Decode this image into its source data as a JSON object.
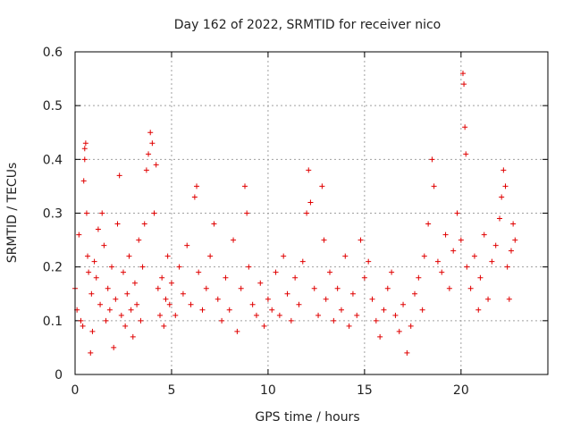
{
  "chart_data": {
    "type": "scatter",
    "title": "Day 162 of 2022, SRMTID for receiver nico",
    "xlabel": "GPS time / hours",
    "ylabel": "SRMTID / TECUs",
    "xlim": [
      0,
      24.5
    ],
    "ylim": [
      0,
      0.6
    ],
    "xticks": [
      0,
      5,
      10,
      15,
      20
    ],
    "xtick_labels": [
      "0",
      "5",
      "10",
      "15",
      "20"
    ],
    "yticks": [
      0,
      0.1,
      0.2,
      0.3,
      0.4,
      0.5,
      0.6
    ],
    "ytick_labels": [
      "0",
      "0.1",
      "0.2",
      "0.3",
      "0.4",
      "0.5",
      "0.6"
    ],
    "grid": true,
    "marker": "+",
    "color": "#e00000",
    "series": [
      {
        "name": "SRMTID",
        "points": [
          [
            0.0,
            0.16
          ],
          [
            0.1,
            0.12
          ],
          [
            0.2,
            0.26
          ],
          [
            0.3,
            0.1
          ],
          [
            0.4,
            0.09
          ],
          [
            0.45,
            0.36
          ],
          [
            0.5,
            0.42
          ],
          [
            0.5,
            0.4
          ],
          [
            0.55,
            0.43
          ],
          [
            0.6,
            0.3
          ],
          [
            0.65,
            0.22
          ],
          [
            0.7,
            0.19
          ],
          [
            0.8,
            0.04
          ],
          [
            0.85,
            0.15
          ],
          [
            0.9,
            0.08
          ],
          [
            1.0,
            0.21
          ],
          [
            1.1,
            0.18
          ],
          [
            1.2,
            0.27
          ],
          [
            1.3,
            0.13
          ],
          [
            1.4,
            0.3
          ],
          [
            1.5,
            0.24
          ],
          [
            1.6,
            0.1
          ],
          [
            1.7,
            0.16
          ],
          [
            1.8,
            0.12
          ],
          [
            1.9,
            0.2
          ],
          [
            2.0,
            0.05
          ],
          [
            2.1,
            0.14
          ],
          [
            2.2,
            0.28
          ],
          [
            2.3,
            0.37
          ],
          [
            2.4,
            0.11
          ],
          [
            2.5,
            0.19
          ],
          [
            2.6,
            0.09
          ],
          [
            2.7,
            0.15
          ],
          [
            2.8,
            0.22
          ],
          [
            2.9,
            0.12
          ],
          [
            3.0,
            0.07
          ],
          [
            3.1,
            0.17
          ],
          [
            3.2,
            0.13
          ],
          [
            3.3,
            0.25
          ],
          [
            3.4,
            0.1
          ],
          [
            3.5,
            0.2
          ],
          [
            3.6,
            0.28
          ],
          [
            3.7,
            0.38
          ],
          [
            3.8,
            0.41
          ],
          [
            3.9,
            0.45
          ],
          [
            4.0,
            0.43
          ],
          [
            4.1,
            0.3
          ],
          [
            4.2,
            0.39
          ],
          [
            4.3,
            0.16
          ],
          [
            4.4,
            0.11
          ],
          [
            4.5,
            0.18
          ],
          [
            4.6,
            0.09
          ],
          [
            4.7,
            0.14
          ],
          [
            4.8,
            0.22
          ],
          [
            4.9,
            0.13
          ],
          [
            5.0,
            0.17
          ],
          [
            5.2,
            0.11
          ],
          [
            5.4,
            0.2
          ],
          [
            5.6,
            0.15
          ],
          [
            5.8,
            0.24
          ],
          [
            6.0,
            0.13
          ],
          [
            6.2,
            0.33
          ],
          [
            6.3,
            0.35
          ],
          [
            6.4,
            0.19
          ],
          [
            6.6,
            0.12
          ],
          [
            6.8,
            0.16
          ],
          [
            7.0,
            0.22
          ],
          [
            7.2,
            0.28
          ],
          [
            7.4,
            0.14
          ],
          [
            7.6,
            0.1
          ],
          [
            7.8,
            0.18
          ],
          [
            8.0,
            0.12
          ],
          [
            8.2,
            0.25
          ],
          [
            8.4,
            0.08
          ],
          [
            8.6,
            0.16
          ],
          [
            8.8,
            0.35
          ],
          [
            8.9,
            0.3
          ],
          [
            9.0,
            0.2
          ],
          [
            9.2,
            0.13
          ],
          [
            9.4,
            0.11
          ],
          [
            9.6,
            0.17
          ],
          [
            9.8,
            0.09
          ],
          [
            10.0,
            0.14
          ],
          [
            10.2,
            0.12
          ],
          [
            10.4,
            0.19
          ],
          [
            10.6,
            0.11
          ],
          [
            10.8,
            0.22
          ],
          [
            11.0,
            0.15
          ],
          [
            11.2,
            0.1
          ],
          [
            11.4,
            0.18
          ],
          [
            11.6,
            0.13
          ],
          [
            11.8,
            0.21
          ],
          [
            12.0,
            0.3
          ],
          [
            12.1,
            0.38
          ],
          [
            12.2,
            0.32
          ],
          [
            12.4,
            0.16
          ],
          [
            12.6,
            0.11
          ],
          [
            12.8,
            0.35
          ],
          [
            12.9,
            0.25
          ],
          [
            13.0,
            0.14
          ],
          [
            13.2,
            0.19
          ],
          [
            13.4,
            0.1
          ],
          [
            13.6,
            0.16
          ],
          [
            13.8,
            0.12
          ],
          [
            14.0,
            0.22
          ],
          [
            14.2,
            0.09
          ],
          [
            14.4,
            0.15
          ],
          [
            14.6,
            0.11
          ],
          [
            14.8,
            0.25
          ],
          [
            15.0,
            0.18
          ],
          [
            15.2,
            0.21
          ],
          [
            15.4,
            0.14
          ],
          [
            15.6,
            0.1
          ],
          [
            15.8,
            0.07
          ],
          [
            16.0,
            0.12
          ],
          [
            16.2,
            0.16
          ],
          [
            16.4,
            0.19
          ],
          [
            16.6,
            0.11
          ],
          [
            16.8,
            0.08
          ],
          [
            17.0,
            0.13
          ],
          [
            17.2,
            0.04
          ],
          [
            17.4,
            0.09
          ],
          [
            17.6,
            0.15
          ],
          [
            17.8,
            0.18
          ],
          [
            18.0,
            0.12
          ],
          [
            18.1,
            0.22
          ],
          [
            18.3,
            0.28
          ],
          [
            18.5,
            0.4
          ],
          [
            18.6,
            0.35
          ],
          [
            18.8,
            0.21
          ],
          [
            19.0,
            0.19
          ],
          [
            19.2,
            0.26
          ],
          [
            19.4,
            0.16
          ],
          [
            19.6,
            0.23
          ],
          [
            19.8,
            0.3
          ],
          [
            20.0,
            0.25
          ],
          [
            20.1,
            0.56
          ],
          [
            20.15,
            0.54
          ],
          [
            20.2,
            0.46
          ],
          [
            20.25,
            0.41
          ],
          [
            20.3,
            0.2
          ],
          [
            20.5,
            0.16
          ],
          [
            20.7,
            0.22
          ],
          [
            20.9,
            0.12
          ],
          [
            21.0,
            0.18
          ],
          [
            21.2,
            0.26
          ],
          [
            21.4,
            0.14
          ],
          [
            21.6,
            0.21
          ],
          [
            21.8,
            0.24
          ],
          [
            22.0,
            0.29
          ],
          [
            22.1,
            0.33
          ],
          [
            22.2,
            0.38
          ],
          [
            22.3,
            0.35
          ],
          [
            22.4,
            0.2
          ],
          [
            22.5,
            0.14
          ],
          [
            22.6,
            0.23
          ],
          [
            22.7,
            0.28
          ],
          [
            22.8,
            0.25
          ]
        ]
      }
    ]
  }
}
